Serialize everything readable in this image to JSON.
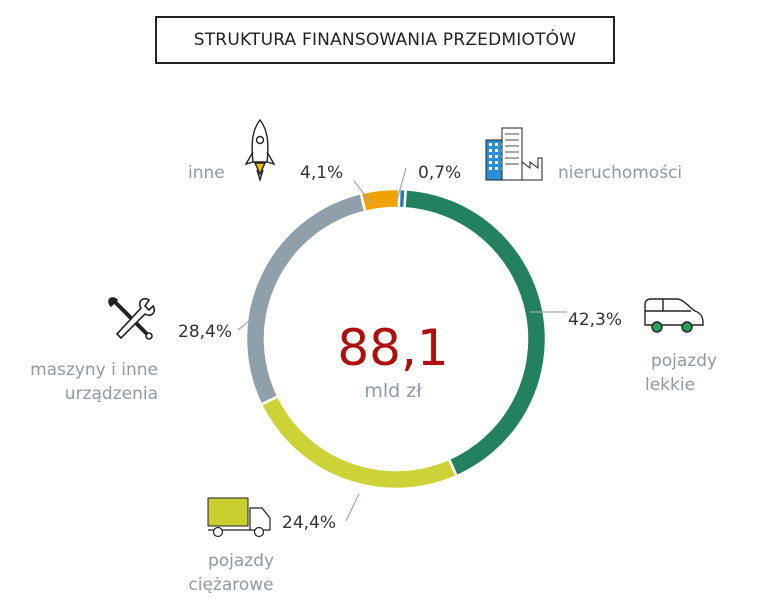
{
  "header": {
    "title": "STRUKTURA FINANSOWANIA PRZEDMIOTÓW"
  },
  "center": {
    "value": "88,1",
    "unit": "mld zł"
  },
  "colors": {
    "inne": "#f2a200",
    "nieruchomosci": "#2a7ab8",
    "pojazdy_lekkie": "#23815f",
    "pojazdy_ciezarowe": "#cdd236",
    "maszyny": "#8fa0aa",
    "value_text": "#b00d0d",
    "category_text": "#8d9aa6"
  },
  "chart_data": {
    "type": "pie",
    "title": "STRUKTURA FINANSOWANIA PRZEDMIOTÓW",
    "total": {
      "value": "88,1",
      "unit": "mld zł"
    },
    "slices": [
      {
        "label": "nieruchomości",
        "value": 0.7,
        "pct_label": "0,7%",
        "icon": "office-building-icon"
      },
      {
        "label": "pojazdy lekkie",
        "value": 42.3,
        "pct_label": "42,3%",
        "icon": "car-icon"
      },
      {
        "label": "pojazdy ciężarowe",
        "value": 24.4,
        "pct_label": "24,4%",
        "icon": "truck-icon"
      },
      {
        "label": "maszyny i inne urządzenia",
        "value": 28.4,
        "pct_label": "28,4%",
        "icon": "wrench-screwdriver-icon"
      },
      {
        "label": "inne",
        "value": 4.1,
        "pct_label": "4,1%",
        "icon": "rocket-icon"
      }
    ]
  }
}
